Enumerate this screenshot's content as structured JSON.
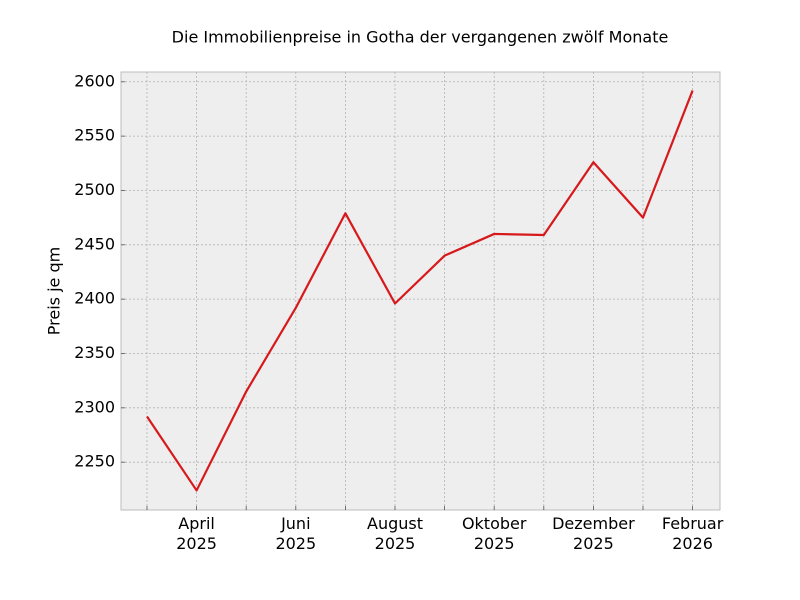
{
  "chart_data": {
    "type": "line",
    "title": "Die Immobilienpreise in Gotha der vergangenen zwölf Monate",
    "y_label": "Preis je qm",
    "categories": [
      null,
      [
        "April",
        "2025"
      ],
      null,
      [
        "Juni",
        "2025"
      ],
      null,
      [
        "August",
        "2025"
      ],
      null,
      [
        "Oktober",
        "2025"
      ],
      null,
      [
        "Dezember",
        "2025"
      ],
      null,
      [
        "Februar",
        "2026"
      ]
    ],
    "series": [
      {
        "name": "Preis",
        "color": "#d7191c",
        "values": [
          2292,
          2224,
          2315,
          2392,
          2479,
          2396,
          2440,
          2460,
          2459,
          2526,
          2475,
          2592
        ]
      }
    ],
    "ylim": [
      2206,
      2609
    ],
    "yticks": [
      2250,
      2300,
      2350,
      2400,
      2450,
      2500,
      2550,
      2600
    ],
    "grid": true
  }
}
